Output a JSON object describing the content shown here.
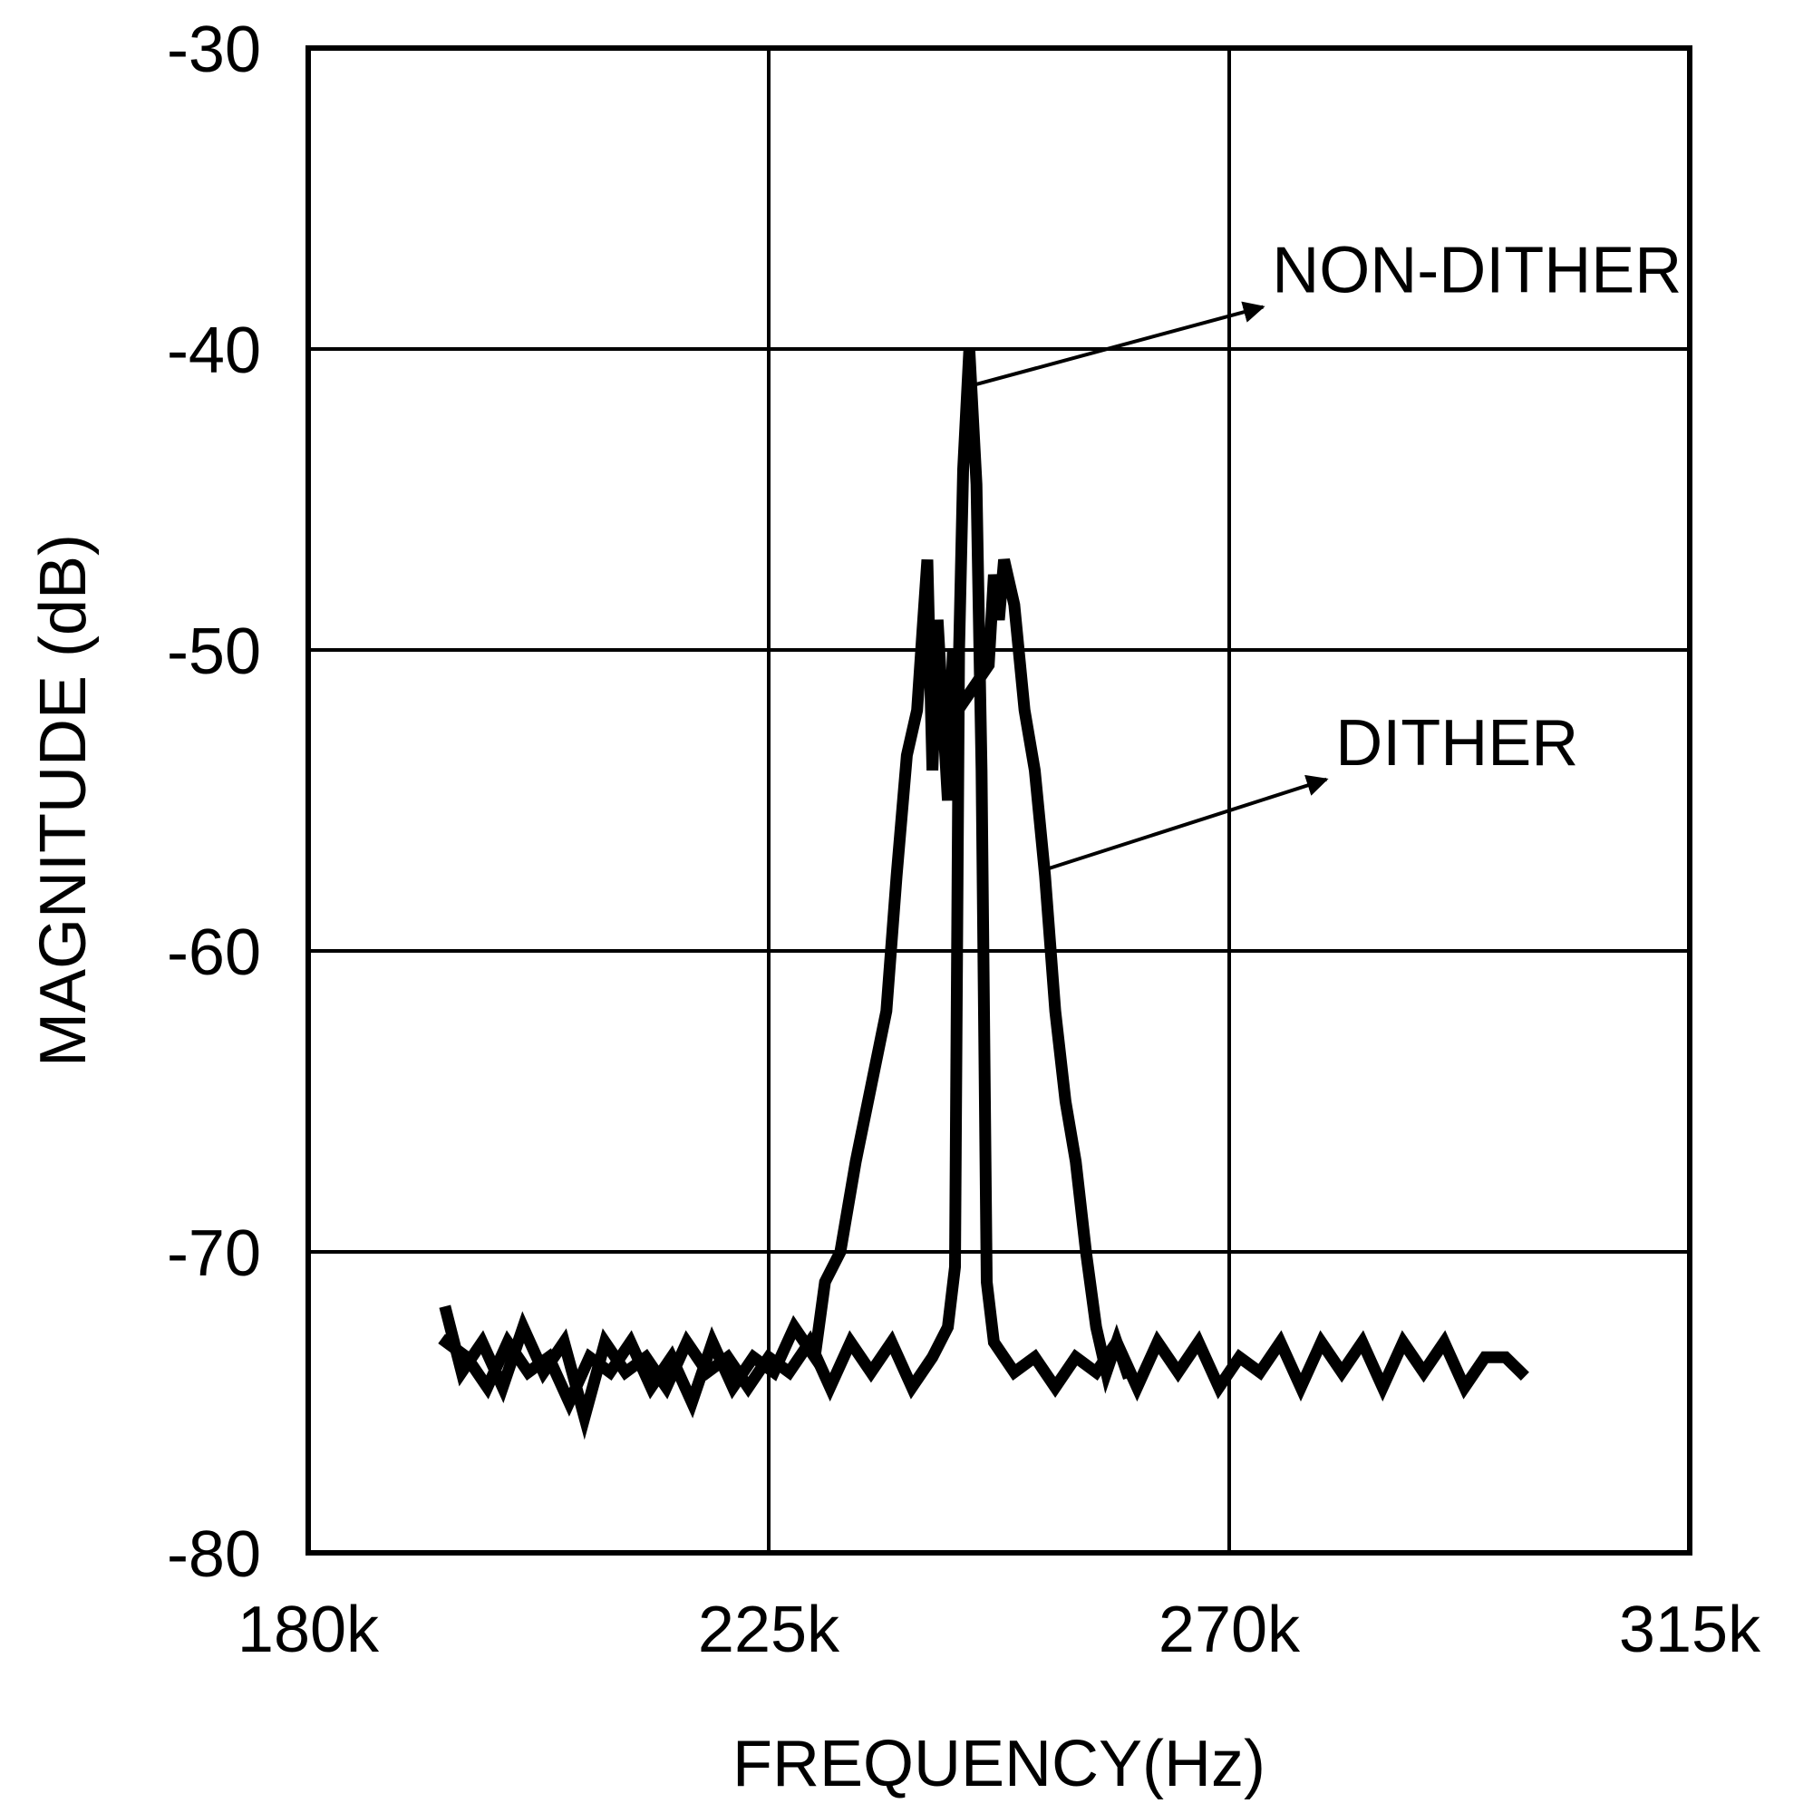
{
  "chart_data": {
    "type": "line",
    "title": "",
    "xlabel": "FREQUENCY(Hz)",
    "ylabel": "MAGNITUDE (dB)",
    "xlim": [
      180000,
      315000
    ],
    "ylim": [
      -80,
      -30
    ],
    "xticks": [
      180000,
      225000,
      270000,
      315000
    ],
    "xtick_labels": [
      "180k",
      "225k",
      "270k",
      "315k"
    ],
    "yticks": [
      -30,
      -40,
      -50,
      -60,
      -70,
      -80
    ],
    "ytick_labels": [
      "-30",
      "-40",
      "-50",
      "-60",
      "-70",
      "-80"
    ],
    "grid": true,
    "legend": "none",
    "line_color": "#000000",
    "series": [
      {
        "name": "NON-DITHER",
        "points": [
          [
            193500,
            -72.0
          ],
          [
            195000,
            -74.0
          ],
          [
            197000,
            -73.0
          ],
          [
            199000,
            -74.5
          ],
          [
            201000,
            -72.5
          ],
          [
            203000,
            -74.0
          ],
          [
            205000,
            -73.0
          ],
          [
            207000,
            -75.5
          ],
          [
            209000,
            -73.0
          ],
          [
            211000,
            -74.0
          ],
          [
            213000,
            -73.5
          ],
          [
            215000,
            -74.5
          ],
          [
            217000,
            -73.0
          ],
          [
            219000,
            -74.0
          ],
          [
            221000,
            -73.5
          ],
          [
            223000,
            -74.5
          ],
          [
            225000,
            -73.5
          ],
          [
            227000,
            -74.0
          ],
          [
            229000,
            -73.0
          ],
          [
            231000,
            -74.5
          ],
          [
            233000,
            -73.0
          ],
          [
            235000,
            -74.0
          ],
          [
            237000,
            -73.0
          ],
          [
            239000,
            -74.5
          ],
          [
            241000,
            -73.5
          ],
          [
            242500,
            -72.5
          ],
          [
            243200,
            -70.5
          ],
          [
            243600,
            -50.0
          ],
          [
            244000,
            -44.0
          ],
          [
            244600,
            -40.0
          ],
          [
            245300,
            -44.5
          ],
          [
            245800,
            -54.0
          ],
          [
            246300,
            -71.0
          ],
          [
            247000,
            -73.0
          ],
          [
            249000,
            -74.0
          ],
          [
            251000,
            -73.5
          ],
          [
            253000,
            -74.5
          ],
          [
            255000,
            -73.5
          ],
          [
            257000,
            -74.0
          ],
          [
            259000,
            -73.0
          ],
          [
            261000,
            -74.5
          ],
          [
            263000,
            -73.0
          ],
          [
            265000,
            -74.0
          ],
          [
            267000,
            -73.0
          ],
          [
            269000,
            -74.5
          ],
          [
            271000,
            -73.5
          ],
          [
            273000,
            -74.0
          ],
          [
            275000,
            -73.0
          ],
          [
            277000,
            -74.5
          ],
          [
            279000,
            -73.0
          ],
          [
            281000,
            -74.0
          ],
          [
            283000,
            -73.0
          ],
          [
            285000,
            -74.5
          ],
          [
            287000,
            -73.0
          ],
          [
            289000,
            -74.0
          ],
          [
            291000,
            -73.0
          ],
          [
            293000,
            -74.5
          ],
          [
            295000,
            -73.5
          ],
          [
            297000,
            -73.5
          ],
          [
            298500,
            -74.0
          ]
        ]
      },
      {
        "name": "DITHER",
        "points": [
          [
            193500,
            -73.0
          ],
          [
            195500,
            -73.5
          ],
          [
            197500,
            -74.5
          ],
          [
            199500,
            -73.0
          ],
          [
            201500,
            -74.0
          ],
          [
            203500,
            -73.5
          ],
          [
            205500,
            -75.0
          ],
          [
            207500,
            -73.5
          ],
          [
            209500,
            -74.0
          ],
          [
            211500,
            -73.0
          ],
          [
            213500,
            -74.5
          ],
          [
            215500,
            -73.5
          ],
          [
            217500,
            -75.0
          ],
          [
            219500,
            -73.0
          ],
          [
            221500,
            -74.5
          ],
          [
            223500,
            -73.5
          ],
          [
            225500,
            -74.0
          ],
          [
            227500,
            -72.5
          ],
          [
            229500,
            -73.5
          ],
          [
            230500,
            -71.0
          ],
          [
            232000,
            -70.0
          ],
          [
            233500,
            -67.0
          ],
          [
            235000,
            -64.5
          ],
          [
            236500,
            -62.0
          ],
          [
            237500,
            -57.5
          ],
          [
            238500,
            -53.5
          ],
          [
            239500,
            -52.0
          ],
          [
            240000,
            -49.5
          ],
          [
            240500,
            -47.0
          ],
          [
            241000,
            -54.0
          ],
          [
            241500,
            -49.0
          ],
          [
            242000,
            -52.0
          ],
          [
            242500,
            -55.0
          ],
          [
            243000,
            -50.0
          ],
          [
            243500,
            -52.0
          ],
          [
            246500,
            -50.5
          ],
          [
            247000,
            -47.5
          ],
          [
            247500,
            -49.0
          ],
          [
            248000,
            -47.0
          ],
          [
            249000,
            -48.5
          ],
          [
            250000,
            -52.0
          ],
          [
            251000,
            -54.0
          ],
          [
            252000,
            -57.5
          ],
          [
            253000,
            -62.0
          ],
          [
            254000,
            -65.0
          ],
          [
            255000,
            -67.0
          ],
          [
            256000,
            -70.0
          ],
          [
            257000,
            -72.5
          ],
          [
            258000,
            -74.0
          ],
          [
            259000,
            -73.0
          ],
          [
            260000,
            -74.0
          ]
        ]
      }
    ],
    "annotations": [
      {
        "text": "NON-DITHER",
        "from": [
          245000,
          -41.2
        ],
        "to": [
          273300,
          -38.6
        ]
      },
      {
        "text": "DITHER",
        "from": [
          252000,
          -57.3
        ],
        "to": [
          279500,
          -54.3
        ]
      }
    ]
  }
}
